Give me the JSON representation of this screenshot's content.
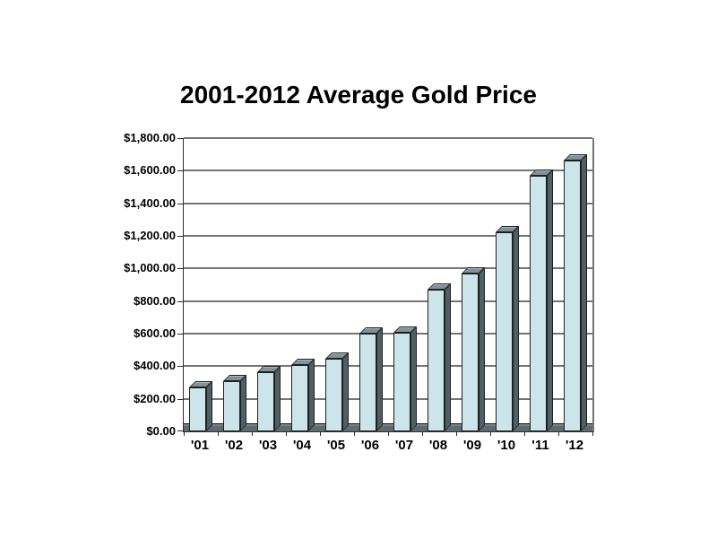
{
  "chart_data": {
    "type": "bar",
    "title": "2001-2012 Average Gold Price",
    "categories": [
      "'01",
      "'02",
      "'03",
      "'04",
      "'05",
      "'06",
      "'07",
      "'08",
      "'09",
      "'10",
      "'11",
      "'12"
    ],
    "values": [
      271,
      310,
      363,
      410,
      445,
      603,
      605,
      872,
      972,
      1225,
      1572,
      1669
    ],
    "xlabel": "",
    "ylabel": "",
    "ylim": [
      0,
      1800
    ],
    "y_tick_step": 200,
    "y_tick_labels": [
      "$0.00",
      "$200.00",
      "$400.00",
      "$600.00",
      "$800.00",
      "$1,000.00",
      "$1,200.00",
      "$1,400.00",
      "$1,600.00",
      "$1,800.00"
    ],
    "grid": "horizontal",
    "legend": "none",
    "bar_style": "3d-effect",
    "colors": {
      "background": "#ffffff",
      "title_text": "#000000",
      "bar_front": "#cbe5ea",
      "bar_top": "#7f9398",
      "bar_side": "#4e5f66",
      "bar_outline": "#202020",
      "gridline": "#757575",
      "axis_line": "#2e2e2e",
      "floor": "#5d6a6e",
      "tick_text": "#000000"
    }
  }
}
